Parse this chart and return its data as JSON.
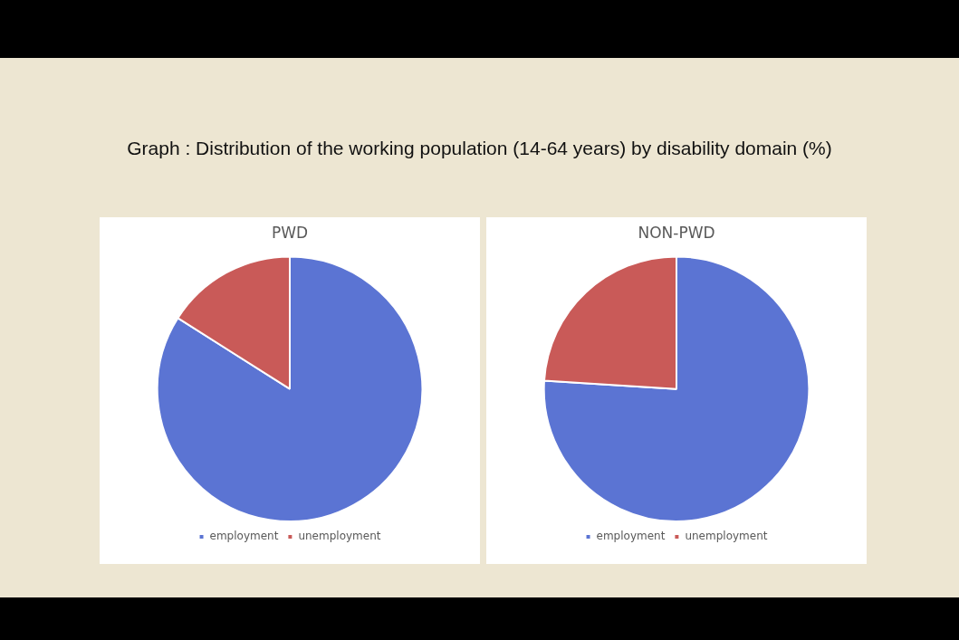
{
  "chart_data": [
    {
      "type": "other",
      "title": "Graph : Distribution of the working population (14-64 years) by disability domain (%)"
    },
    {
      "type": "pie",
      "title": "PWD",
      "categories": [
        "employment",
        "unemployment"
      ],
      "values": [
        84,
        16
      ],
      "colors": [
        "#5b74d3",
        "#c95a58"
      ],
      "legend": "bottom"
    },
    {
      "type": "pie",
      "title": "NON-PWD",
      "categories": [
        "employment",
        "unemployment"
      ],
      "values": [
        76,
        24
      ],
      "colors": [
        "#5b74d3",
        "#c95a58"
      ],
      "legend": "bottom"
    }
  ]
}
